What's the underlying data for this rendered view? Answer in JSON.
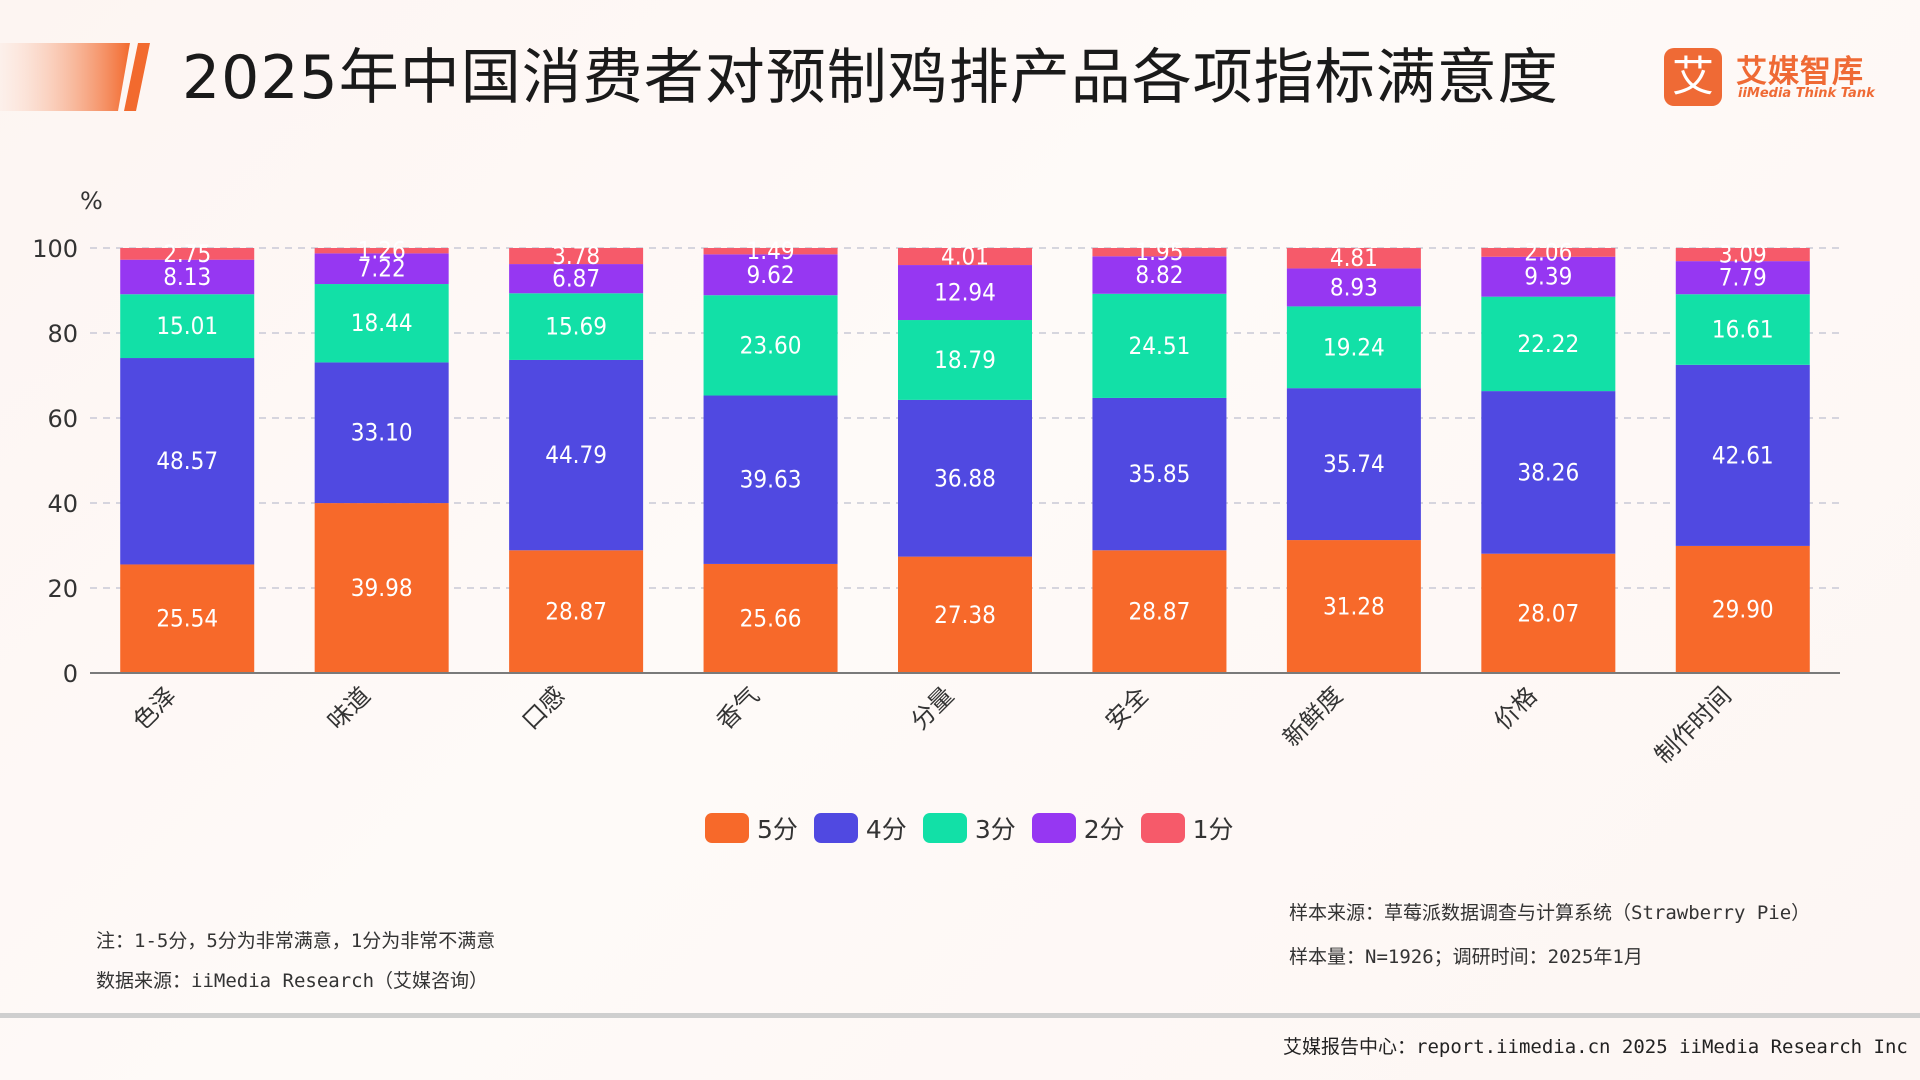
{
  "title": "2025年中国消费者对预制鸡排产品各项指标满意度",
  "logo": {
    "mark": "艾",
    "name": "艾媒智库",
    "en": "iiMedia Think Tank"
  },
  "colors": {
    "accent": "#ef6a35",
    "score5": "#f7692a",
    "score4": "#5049e1",
    "score3": "#12e0a7",
    "score2": "#9637f2",
    "score1": "#f65a6a"
  },
  "chart_data": {
    "type": "bar",
    "stacked": true,
    "unit": "%",
    "ylim": [
      0,
      100
    ],
    "yticks": [
      0,
      20,
      40,
      60,
      80,
      100
    ],
    "grid": true,
    "legend_position": "bottom-center",
    "categories": [
      "色泽",
      "味道",
      "口感",
      "香气",
      "分量",
      "安全",
      "新鲜度",
      "价格",
      "制作时间"
    ],
    "series": [
      {
        "name": "5分",
        "color": "#f7692a",
        "values": [
          25.54,
          39.98,
          28.87,
          25.66,
          27.38,
          28.87,
          31.28,
          28.07,
          29.9
        ]
      },
      {
        "name": "4分",
        "color": "#5049e1",
        "values": [
          48.57,
          33.1,
          44.79,
          39.63,
          36.88,
          35.85,
          35.74,
          38.26,
          42.61
        ]
      },
      {
        "name": "3分",
        "color": "#12e0a7",
        "values": [
          15.01,
          18.44,
          15.69,
          23.6,
          18.79,
          24.51,
          19.24,
          22.22,
          16.61
        ]
      },
      {
        "name": "2分",
        "color": "#9637f2",
        "values": [
          8.13,
          7.22,
          6.87,
          9.62,
          12.94,
          8.82,
          8.93,
          9.39,
          7.79
        ]
      },
      {
        "name": "1分",
        "color": "#f65a6a",
        "values": [
          2.75,
          1.26,
          3.78,
          1.49,
          4.01,
          1.95,
          4.81,
          2.06,
          3.09
        ]
      }
    ]
  },
  "notes": {
    "scale": "注：1-5分，5分为非常满意，1分为非常不满意",
    "source": "数据来源：iiMedia Research（艾媒咨询）",
    "sample_source": "样本来源：草莓派数据调查与计算系统（Strawberry Pie）",
    "sample_size": "样本量：N=1926；调研时间：2025年1月"
  },
  "footer": "艾媒报告中心：report.iimedia.cn 2025 iiMedia Research Inc"
}
